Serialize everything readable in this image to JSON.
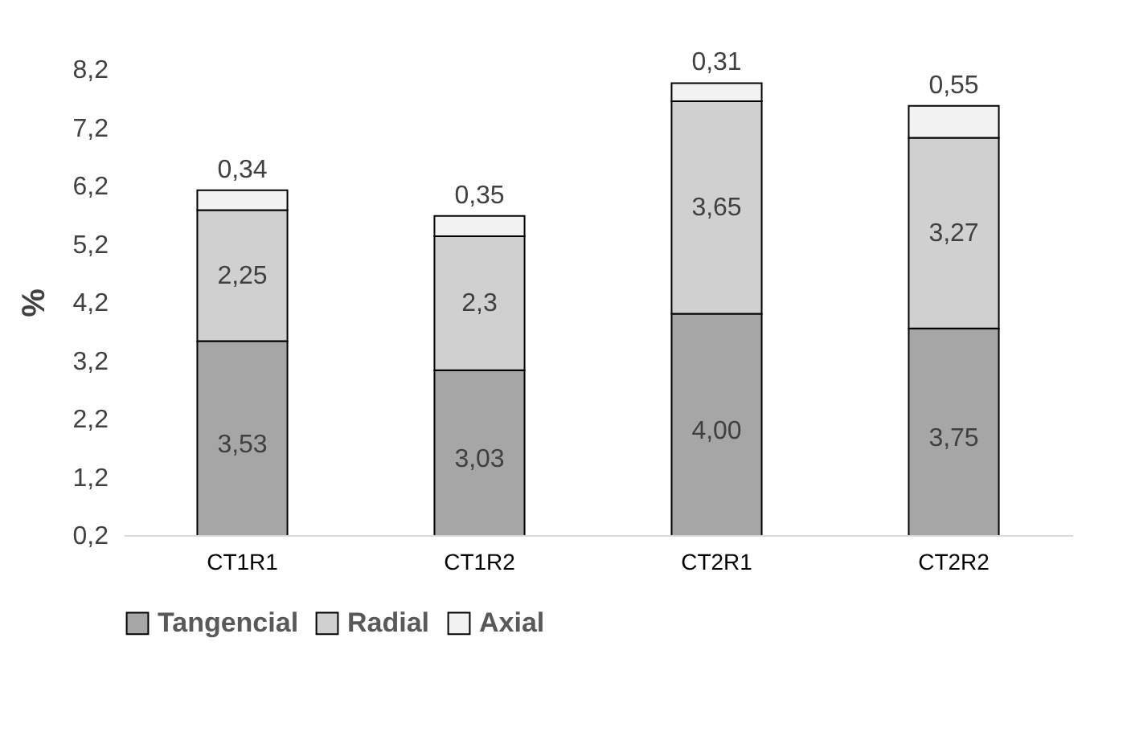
{
  "chart_data": {
    "type": "bar",
    "stacked": true,
    "ylabel": "%",
    "categories": [
      "CT1R1",
      "CT1R2",
      "CT2R1",
      "CT2R2"
    ],
    "series": [
      {
        "name": "Tangencial",
        "color": "#a6a6a6",
        "values": [
          3.53,
          3.03,
          4.0,
          3.75
        ],
        "value_labels": [
          "3,53",
          "3,03",
          "4,00",
          "3,75"
        ]
      },
      {
        "name": "Radial",
        "color": "#d0d0d0",
        "values": [
          2.25,
          2.3,
          3.65,
          3.27
        ],
        "value_labels": [
          "2,25",
          "2,3",
          "3,65",
          "3,27"
        ]
      },
      {
        "name": "Axial",
        "color": "#f2f2f2",
        "values": [
          0.34,
          0.35,
          0.31,
          0.55
        ],
        "value_labels": [
          "0,34",
          "0,35",
          "0,31",
          "0,55"
        ]
      }
    ],
    "ylim": [
      0.2,
      8.2
    ],
    "yticks": [
      {
        "value": 0.2,
        "label": "0,2"
      },
      {
        "value": 1.2,
        "label": "1,2"
      },
      {
        "value": 2.2,
        "label": "2,2"
      },
      {
        "value": 3.2,
        "label": "3,2"
      },
      {
        "value": 4.2,
        "label": "4,2"
      },
      {
        "value": 5.2,
        "label": "5,2"
      },
      {
        "value": 6.2,
        "label": "6,2"
      },
      {
        "value": 7.2,
        "label": "7,2"
      },
      {
        "value": 8.2,
        "label": "8,2"
      }
    ],
    "grid": false,
    "legend": "bottom"
  }
}
